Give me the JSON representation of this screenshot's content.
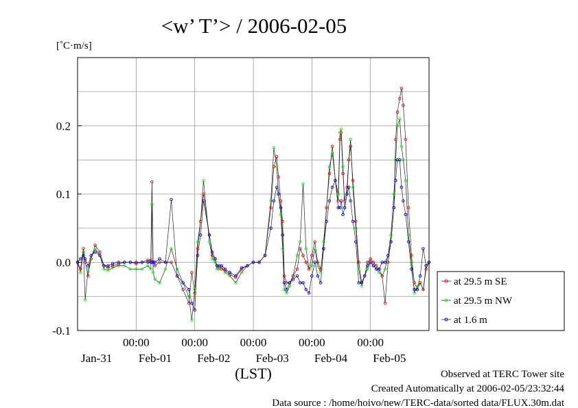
{
  "chart_data": {
    "type": "line",
    "title": "<w’ T’> / 2006-02-05",
    "ylabel": "[˚C·m/s]",
    "xlabel": "(LST)",
    "ylim": [
      -0.1,
      0.3
    ],
    "xlim": [
      0,
      6
    ],
    "yticks": [
      {
        "v": -0.1,
        "label": "-0.1"
      },
      {
        "v": 0.0,
        "label": "0.0"
      },
      {
        "v": 0.1,
        "label": "0.1"
      },
      {
        "v": 0.2,
        "label": "0.2"
      }
    ],
    "xticks_time": [
      {
        "x": 1,
        "label": "00:00"
      },
      {
        "x": 2,
        "label": "00:00"
      },
      {
        "x": 3,
        "label": "00:00"
      },
      {
        "x": 4,
        "label": "00:00"
      },
      {
        "x": 5,
        "label": "00:00"
      }
    ],
    "xticks_date": [
      {
        "x": 0.5,
        "label": "Jan-31"
      },
      {
        "x": 1.5,
        "label": "Feb-01"
      },
      {
        "x": 2.5,
        "label": "Feb-02"
      },
      {
        "x": 3.5,
        "label": "Feb-03"
      },
      {
        "x": 4.5,
        "label": "Feb-04"
      },
      {
        "x": 5.5,
        "label": "Feb-05"
      }
    ],
    "x_units": "days since start of plotted period (major ticks at 00:00 LST)",
    "grid": true,
    "legend_position": "right, outside plot",
    "series": [
      {
        "name": "at 29.5 m SE",
        "color": "#ff0000",
        "x": [
          0.0,
          0.05,
          0.1,
          0.13,
          0.18,
          0.23,
          0.3,
          0.38,
          0.45,
          0.52,
          0.6,
          0.7,
          0.8,
          0.9,
          1.0,
          1.1,
          1.2,
          1.25,
          1.27,
          1.29,
          1.32,
          1.4,
          1.5,
          1.6,
          1.7,
          1.8,
          1.9,
          1.95,
          2.0,
          2.05,
          2.1,
          2.15,
          2.25,
          2.3,
          2.35,
          2.38,
          2.42,
          2.46,
          2.52,
          2.6,
          2.7,
          2.8,
          2.9,
          3.0,
          3.1,
          3.2,
          3.3,
          3.35,
          3.4,
          3.43,
          3.47,
          3.5,
          3.53,
          3.57,
          3.62,
          3.68,
          3.75,
          3.8,
          3.85,
          3.9,
          3.95,
          4.0,
          4.05,
          4.1,
          4.15,
          4.2,
          4.25,
          4.3,
          4.35,
          4.4,
          4.45,
          4.48,
          4.5,
          4.53,
          4.56,
          4.6,
          4.63,
          4.66,
          4.7,
          4.75,
          4.8,
          4.85,
          4.9,
          4.95,
          5.0,
          5.05,
          5.1,
          5.15,
          5.2,
          5.25,
          5.3,
          5.35,
          5.4,
          5.43,
          5.46,
          5.5,
          5.53,
          5.56,
          5.6,
          5.65,
          5.7,
          5.75,
          5.8,
          5.85,
          5.9,
          5.95,
          6.0
        ],
        "y": [
          0.0,
          -0.01,
          0.02,
          0.0,
          -0.02,
          0.005,
          0.025,
          0.015,
          -0.005,
          -0.008,
          -0.005,
          -0.003,
          0.0,
          0.0,
          -0.002,
          0.0,
          0.003,
          0.003,
          0.118,
          0.0,
          -0.005,
          0.0,
          0.0,
          0.0,
          -0.02,
          -0.04,
          -0.06,
          -0.015,
          -0.045,
          0.02,
          0.06,
          0.1,
          0.04,
          0.01,
          0.005,
          -0.005,
          -0.008,
          -0.01,
          -0.012,
          -0.018,
          -0.022,
          -0.01,
          -0.005,
          0.0,
          0.0,
          0.01,
          0.08,
          0.14,
          0.155,
          0.125,
          0.09,
          0.06,
          -0.02,
          -0.03,
          -0.03,
          -0.02,
          -0.01,
          0.02,
          0.01,
          0.0,
          -0.01,
          0.01,
          0.03,
          0.0,
          -0.01,
          0.02,
          0.08,
          0.13,
          0.17,
          0.12,
          0.09,
          0.18,
          0.19,
          0.13,
          0.09,
          0.11,
          0.15,
          0.17,
          0.12,
          0.06,
          0.0,
          -0.03,
          -0.02,
          0.0,
          0.005,
          0.0,
          -0.005,
          -0.01,
          -0.02,
          -0.06,
          0.0,
          0.03,
          0.08,
          0.18,
          0.22,
          0.24,
          0.255,
          0.23,
          0.18,
          0.08,
          0.01,
          -0.03,
          -0.04,
          -0.03,
          -0.04,
          -0.01,
          0.0
        ]
      },
      {
        "name": "at 29.5 m NW",
        "color": "#00ff00",
        "x": [
          0.0,
          0.05,
          0.1,
          0.13,
          0.18,
          0.23,
          0.3,
          0.38,
          0.45,
          0.52,
          0.6,
          0.7,
          0.8,
          0.9,
          1.0,
          1.1,
          1.2,
          1.25,
          1.27,
          1.29,
          1.32,
          1.4,
          1.5,
          1.6,
          1.7,
          1.8,
          1.9,
          1.95,
          2.0,
          2.05,
          2.1,
          2.15,
          2.25,
          2.3,
          2.35,
          2.38,
          2.42,
          2.46,
          2.52,
          2.6,
          2.7,
          2.8,
          2.9,
          3.0,
          3.1,
          3.2,
          3.3,
          3.35,
          3.4,
          3.43,
          3.47,
          3.5,
          3.53,
          3.57,
          3.62,
          3.68,
          3.75,
          3.8,
          3.85,
          3.9,
          3.95,
          4.0,
          4.05,
          4.1,
          4.15,
          4.2,
          4.25,
          4.3,
          4.35,
          4.4,
          4.45,
          4.48,
          4.5,
          4.53,
          4.56,
          4.6,
          4.63,
          4.66,
          4.7,
          4.75,
          4.8,
          4.85,
          4.9,
          4.95,
          5.0,
          5.05,
          5.1,
          5.15,
          5.2,
          5.25,
          5.3,
          5.35,
          5.4,
          5.43,
          5.46,
          5.5,
          5.53,
          5.56,
          5.6,
          5.65,
          5.7,
          5.75,
          5.8,
          5.85,
          5.9,
          5.95,
          6.0
        ],
        "y": [
          0.0,
          -0.015,
          0.015,
          -0.055,
          -0.01,
          0.005,
          0.02,
          0.01,
          -0.01,
          -0.012,
          -0.008,
          -0.005,
          -0.005,
          -0.01,
          -0.01,
          -0.01,
          -0.005,
          -0.01,
          0.085,
          -0.015,
          -0.025,
          -0.03,
          -0.01,
          0.02,
          -0.01,
          -0.03,
          -0.05,
          -0.085,
          -0.04,
          0.03,
          0.06,
          0.12,
          0.03,
          0.005,
          0.0,
          -0.01,
          -0.01,
          -0.008,
          -0.015,
          -0.02,
          -0.03,
          -0.015,
          -0.005,
          0.0,
          0.0,
          0.01,
          0.09,
          0.168,
          0.14,
          0.1,
          0.07,
          0.02,
          -0.04,
          -0.045,
          -0.035,
          -0.02,
          0.01,
          0.03,
          0.115,
          0.02,
          -0.01,
          -0.005,
          0.02,
          -0.005,
          -0.015,
          0.03,
          0.08,
          0.14,
          0.16,
          0.12,
          0.1,
          0.19,
          0.195,
          0.14,
          0.08,
          0.1,
          0.15,
          0.18,
          0.11,
          0.05,
          -0.01,
          -0.035,
          -0.02,
          -0.01,
          0.0,
          -0.005,
          -0.01,
          -0.015,
          -0.02,
          -0.01,
          0.01,
          0.04,
          0.1,
          0.15,
          0.2,
          0.21,
          0.17,
          0.15,
          0.12,
          0.04,
          0.0,
          -0.045,
          -0.035,
          -0.03,
          -0.04,
          -0.005,
          0.0
        ]
      },
      {
        "name": "at 1.6 m",
        "color": "#0000ff",
        "x": [
          0.0,
          0.05,
          0.1,
          0.13,
          0.18,
          0.23,
          0.3,
          0.38,
          0.45,
          0.52,
          0.6,
          0.7,
          0.8,
          0.9,
          1.0,
          1.1,
          1.2,
          1.25,
          1.27,
          1.29,
          1.32,
          1.4,
          1.5,
          1.6,
          1.7,
          1.8,
          1.9,
          1.95,
          2.0,
          2.05,
          2.1,
          2.15,
          2.25,
          2.3,
          2.35,
          2.38,
          2.42,
          2.46,
          2.52,
          2.6,
          2.7,
          2.8,
          2.9,
          3.0,
          3.1,
          3.2,
          3.3,
          3.35,
          3.4,
          3.43,
          3.47,
          3.5,
          3.53,
          3.57,
          3.62,
          3.68,
          3.75,
          3.8,
          3.85,
          3.9,
          3.95,
          4.0,
          4.05,
          4.1,
          4.15,
          4.2,
          4.25,
          4.3,
          4.35,
          4.4,
          4.45,
          4.48,
          4.5,
          4.53,
          4.56,
          4.6,
          4.63,
          4.66,
          4.7,
          4.75,
          4.8,
          4.85,
          4.9,
          4.95,
          5.0,
          5.05,
          5.1,
          5.15,
          5.2,
          5.25,
          5.3,
          5.35,
          5.4,
          5.43,
          5.46,
          5.5,
          5.53,
          5.56,
          5.6,
          5.65,
          5.7,
          5.75,
          5.8,
          5.85,
          5.9,
          5.95,
          6.0
        ],
        "y": [
          0.0,
          0.005,
          0.01,
          0.005,
          -0.005,
          0.01,
          0.015,
          0.01,
          -0.005,
          -0.005,
          -0.002,
          0.0,
          0.0,
          0.0,
          0.0,
          0.0,
          0.0,
          0.0,
          0.0,
          0.0,
          0.0,
          0.005,
          0.0,
          0.092,
          -0.02,
          -0.03,
          -0.04,
          -0.06,
          -0.07,
          0.01,
          0.04,
          0.09,
          0.04,
          0.015,
          0.005,
          -0.005,
          -0.005,
          -0.005,
          -0.01,
          -0.015,
          -0.02,
          -0.008,
          -0.005,
          0.0,
          0.0,
          0.01,
          0.05,
          0.09,
          0.11,
          0.1,
          0.08,
          0.04,
          -0.03,
          -0.04,
          -0.03,
          -0.025,
          -0.02,
          -0.03,
          -0.03,
          -0.04,
          -0.045,
          -0.02,
          0.0,
          -0.02,
          -0.03,
          0.02,
          0.06,
          0.09,
          0.11,
          0.12,
          0.08,
          0.08,
          0.09,
          0.07,
          0.08,
          0.1,
          0.11,
          0.09,
          0.06,
          0.03,
          -0.03,
          -0.03,
          -0.02,
          -0.005,
          0.0,
          -0.005,
          -0.01,
          -0.01,
          0.0,
          0.0,
          0.01,
          0.03,
          0.08,
          0.12,
          0.15,
          0.15,
          0.11,
          0.09,
          0.07,
          0.03,
          -0.01,
          -0.04,
          -0.04,
          -0.02,
          0.02,
          -0.005,
          0.0
        ]
      }
    ]
  },
  "footer": {
    "line1": "Observed at TERC Tower site",
    "line2": "Created Automatically at 2006-02-05/23:32:44",
    "line3": "Data source : /home/hoivo/new/TERC-data/sorted  data/FLUX.30m.dat"
  }
}
